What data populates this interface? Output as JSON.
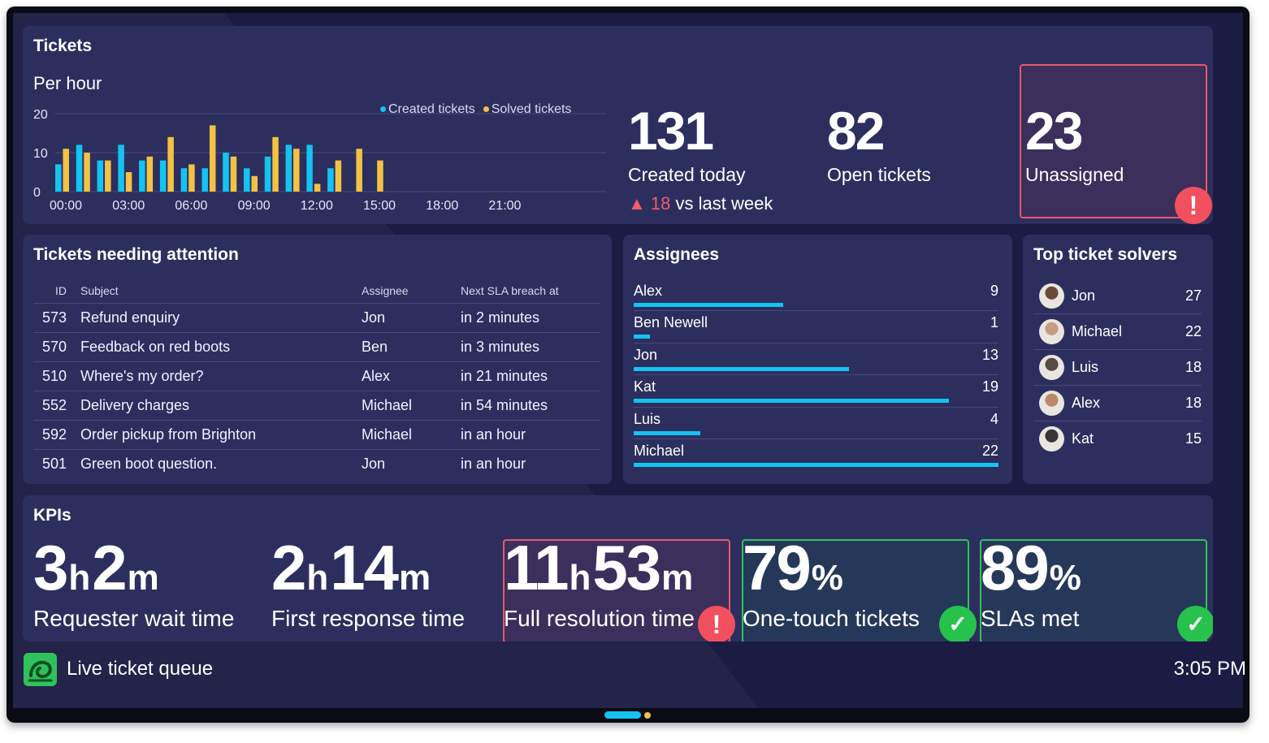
{
  "tickets": {
    "title": "Tickets",
    "chart_subtitle": "Per hour",
    "stats": {
      "created": {
        "value": "131",
        "label": "Created today"
      },
      "open": {
        "value": "82",
        "label": "Open tickets"
      },
      "unassigned": {
        "value": "23",
        "label": "Unassigned"
      }
    },
    "delta": {
      "value": "18",
      "text": "vs last week"
    }
  },
  "chart_data": {
    "type": "bar",
    "title": "Per hour",
    "xlabel": "",
    "ylabel": "",
    "ylim": [
      0,
      20
    ],
    "y_ticks": [
      "20",
      "10",
      "0"
    ],
    "x_ticks": [
      "00:00",
      "03:00",
      "06:00",
      "09:00",
      "12:00",
      "15:00",
      "18:00",
      "21:00"
    ],
    "categories": [
      "00:00",
      "01:00",
      "02:00",
      "03:00",
      "04:00",
      "05:00",
      "06:00",
      "07:00",
      "08:00",
      "09:00",
      "10:00",
      "11:00",
      "12:00",
      "13:00",
      "14:00",
      "15:00"
    ],
    "series": [
      {
        "name": "Created tickets",
        "color": "#14c3f2",
        "values": [
          7,
          12,
          8,
          12,
          8,
          8,
          6,
          6,
          10,
          6,
          9,
          12,
          12,
          6,
          0,
          0
        ]
      },
      {
        "name": "Solved tickets",
        "color": "#f2c244",
        "values": [
          11,
          10,
          8,
          5,
          9,
          14,
          7,
          17,
          9,
          4,
          14,
          11,
          2,
          8,
          11,
          8
        ]
      }
    ]
  },
  "attention": {
    "title": "Tickets needing attention",
    "headers": {
      "id": "ID",
      "subject": "Subject",
      "assignee": "Assignee",
      "sla": "Next SLA breach at"
    },
    "rows": [
      {
        "id": "573",
        "subject": "Refund enquiry",
        "assignee": "Jon",
        "sla": "in 2 minutes"
      },
      {
        "id": "570",
        "subject": "Feedback on red boots",
        "assignee": "Ben",
        "sla": "in 3 minutes"
      },
      {
        "id": "510",
        "subject": "Where's my order?",
        "assignee": "Alex",
        "sla": "in 21 minutes"
      },
      {
        "id": "552",
        "subject": "Delivery charges",
        "assignee": "Michael",
        "sla": "in 54 minutes"
      },
      {
        "id": "592",
        "subject": "Order pickup from Brighton",
        "assignee": "Michael",
        "sla": "in an hour"
      },
      {
        "id": "501",
        "subject": "Green boot question.",
        "assignee": "Jon",
        "sla": "in an hour"
      }
    ]
  },
  "assignees": {
    "title": "Assignees",
    "max": 22,
    "rows": [
      {
        "name": "Alex",
        "count": "9"
      },
      {
        "name": "Ben Newell",
        "count": "1"
      },
      {
        "name": "Jon",
        "count": "13"
      },
      {
        "name": "Kat",
        "count": "19"
      },
      {
        "name": "Luis",
        "count": "4"
      },
      {
        "name": "Michael",
        "count": "22"
      }
    ]
  },
  "solvers": {
    "title": "Top ticket solvers",
    "rows": [
      {
        "name": "Jon",
        "count": "27",
        "avatar_color": "#6b4a3a"
      },
      {
        "name": "Michael",
        "count": "22",
        "avatar_color": "#c99a82"
      },
      {
        "name": "Luis",
        "count": "18",
        "avatar_color": "#5a4a44"
      },
      {
        "name": "Alex",
        "count": "18",
        "avatar_color": "#b88a6a"
      },
      {
        "name": "Kat",
        "count": "15",
        "avatar_color": "#3a3438"
      }
    ]
  },
  "kpis": {
    "title": "KPIs",
    "items": [
      {
        "n1": "3",
        "u1": "h",
        "n2": "2",
        "u2": "m",
        "label": "Requester wait time",
        "status": "none"
      },
      {
        "n1": "2",
        "u1": "h",
        "n2": "14",
        "u2": "m",
        "label": "First response time",
        "status": "none"
      },
      {
        "n1": "11",
        "u1": "h",
        "n2": "53",
        "u2": "m",
        "label": "Full resolution time",
        "status": "bad"
      },
      {
        "n1": "79",
        "u1": "%",
        "n2": "",
        "u2": "",
        "label": "One-touch tickets",
        "status": "good"
      },
      {
        "n1": "89",
        "u1": "%",
        "n2": "",
        "u2": "",
        "label": "SLAs met",
        "status": "good"
      }
    ]
  },
  "footer": {
    "title": "Live ticket queue",
    "time": "3:05 PM"
  },
  "colors": {
    "created": "#14c3f2",
    "solved": "#f2c244",
    "alert": "#f2505f",
    "ok": "#27c24c",
    "panel": "#2c2f5e",
    "background": "#1c1b44"
  },
  "icons": {
    "alert": "exclamation-icon",
    "ok": "check-icon",
    "delta": "triangle-up-icon",
    "logo": "app-logo-icon"
  }
}
